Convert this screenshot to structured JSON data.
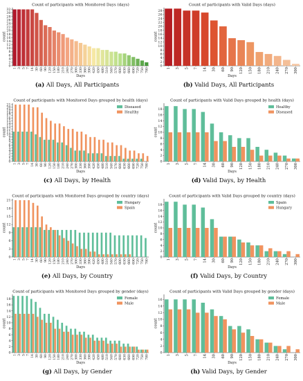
{
  "colors": {
    "all_days_gradient": [
      "#b2182b",
      "#d6604d",
      "#f4a582",
      "#f6e8a4",
      "#b8e08a",
      "#4a9b3e"
    ],
    "valid_days_gradient": [
      "#b51d23",
      "#dd4f2d",
      "#ee9b66",
      "#f6c9a6"
    ],
    "green": "#5fbe9a",
    "orange": "#f0935f"
  },
  "chart_data": [
    {
      "id": "a",
      "type": "bar",
      "title": "Count of participants with Monitored Days (days)",
      "xlabel": "Days",
      "ylabel": "count",
      "ylim": [
        0,
        33
      ],
      "yticks": [
        0,
        2,
        4,
        6,
        8,
        10,
        12,
        14,
        16,
        18,
        20,
        22,
        24,
        26,
        28,
        30,
        32
      ],
      "categories": [
        "1",
        "3",
        "5",
        "7",
        "14",
        "30",
        "60",
        "90",
        "120",
        "150",
        "180",
        "210",
        "240",
        "270",
        "300",
        "330",
        "360",
        "390",
        "420",
        "450",
        "480",
        "510",
        "540",
        "570",
        "600",
        "630",
        "660",
        "690",
        "720",
        "750",
        "780"
      ],
      "values": [
        32,
        32,
        32,
        32,
        32,
        30,
        26,
        23,
        22,
        20,
        19,
        18,
        16,
        15,
        14,
        13,
        12,
        11,
        10,
        10,
        9,
        9,
        8,
        8,
        7,
        7,
        6,
        5,
        4,
        3,
        2
      ],
      "color_scheme": "all_days_gradient",
      "caption_label": "(a)",
      "caption_text": "All Days, All Participants"
    },
    {
      "id": "b",
      "type": "bar",
      "title": "Count of participants with Valid Days (days)",
      "xlabel": "Days",
      "ylabel": "count",
      "ylim": [
        0,
        29.5
      ],
      "yticks": [
        0,
        2,
        4,
        6,
        8,
        10,
        12,
        14,
        16,
        18,
        20,
        22,
        24,
        26,
        28
      ],
      "categories": [
        "1",
        "3",
        "5",
        "7",
        "14",
        "30",
        "60",
        "90",
        "120",
        "150",
        "180",
        "210",
        "240",
        "270",
        "300"
      ],
      "values": [
        29,
        29,
        28,
        28,
        27,
        23,
        20,
        14,
        13,
        12,
        7,
        6,
        5,
        3,
        1
      ],
      "color_scheme": "valid_days_gradient",
      "caption_label": "(b)",
      "caption_text": "Valid Days, All Participants"
    },
    {
      "id": "c",
      "type": "bar",
      "title": "Count of participants with Monitored Days grouped by health (days)",
      "xlabel": "Days",
      "ylabel": "count",
      "ylim": [
        0,
        21.5
      ],
      "yticks": [
        0,
        1,
        2,
        3,
        4,
        5,
        6,
        7,
        8,
        9,
        10,
        11,
        12,
        13,
        14,
        15,
        16,
        17,
        18,
        19,
        20,
        21
      ],
      "legend": "top-right",
      "categories": [
        "1",
        "3",
        "5",
        "7",
        "14",
        "30",
        "60",
        "90",
        "120",
        "150",
        "180",
        "210",
        "240",
        "270",
        "300",
        "330",
        "360",
        "390",
        "420",
        "450",
        "480",
        "510",
        "540",
        "570",
        "600",
        "630",
        "660",
        "690",
        "720",
        "750",
        "780"
      ],
      "series": [
        {
          "name": "Diseased",
          "color": "green",
          "values": [
            11,
            11,
            11,
            11,
            11,
            10,
            9,
            8,
            8,
            8,
            7,
            7,
            6,
            5,
            4,
            4,
            4,
            3,
            3,
            3,
            3,
            2,
            2,
            2,
            2,
            1,
            1,
            1,
            1,
            1,
            0
          ]
        },
        {
          "name": "Healthy",
          "color": "orange",
          "values": [
            21,
            21,
            21,
            21,
            20,
            20,
            18,
            16,
            15,
            14,
            14,
            13,
            12,
            12,
            11,
            11,
            10,
            9,
            9,
            8,
            8,
            7,
            7,
            6,
            6,
            5,
            4,
            4,
            3,
            3,
            2
          ]
        }
      ],
      "caption_label": "(c)",
      "caption_text": "All Days, by Health"
    },
    {
      "id": "d",
      "type": "bar",
      "title": "Count of participants with Valid Days grouped by health (days)",
      "xlabel": "Days",
      "ylabel": "count",
      "ylim": [
        0,
        20
      ],
      "yticks": [
        0,
        2,
        4,
        6,
        8,
        10,
        12,
        14,
        16,
        18
      ],
      "legend": "top-right",
      "categories": [
        "1",
        "3",
        "5",
        "7",
        "14",
        "30",
        "60",
        "90",
        "120",
        "150",
        "180",
        "210",
        "240",
        "270",
        "300"
      ],
      "series": [
        {
          "name": "Healthy",
          "color": "green",
          "values": [
            19,
            19,
            18,
            18,
            17,
            13,
            10,
            9,
            8,
            8,
            5,
            4,
            3,
            2,
            1
          ]
        },
        {
          "name": "Diseased",
          "color": "orange",
          "values": [
            10,
            10,
            10,
            10,
            10,
            7,
            7,
            5,
            5,
            4,
            2,
            2,
            2,
            1,
            1
          ]
        }
      ],
      "caption_label": "(d)",
      "caption_text": "Valid Days, by Health"
    },
    {
      "id": "e",
      "type": "bar",
      "title": "Count of participants with Monitored Days grouped by country (days)",
      "xlabel": "Days",
      "ylabel": "count",
      "ylim": [
        0,
        21.5
      ],
      "yticks": [
        0,
        3,
        6,
        9,
        12,
        15,
        18,
        21
      ],
      "legend": "top-right",
      "categories": [
        "1",
        "3",
        "5",
        "7",
        "14",
        "30",
        "60",
        "90",
        "120",
        "150",
        "180",
        "210",
        "240",
        "270",
        "300",
        "330",
        "360",
        "390",
        "420",
        "450",
        "480",
        "510",
        "540",
        "570",
        "600",
        "630",
        "660",
        "690",
        "720",
        "750",
        "780"
      ],
      "series": [
        {
          "name": "Hungary",
          "color": "green",
          "values": [
            11,
            11,
            11,
            11,
            11,
            11,
            11,
            10,
            10,
            10,
            10,
            10,
            10,
            10,
            10,
            9,
            9,
            9,
            9,
            9,
            9,
            9,
            9,
            8,
            8,
            8,
            8,
            8,
            8,
            8,
            7
          ]
        },
        {
          "name": "Spain",
          "color": "orange",
          "values": [
            21,
            21,
            21,
            21,
            20,
            19,
            15,
            12,
            11,
            10,
            8,
            7,
            6,
            5,
            4,
            3,
            3,
            2,
            2,
            1,
            1,
            1,
            1,
            1,
            1,
            1,
            1,
            0,
            0,
            0,
            0
          ]
        }
      ],
      "caption_label": "(e)",
      "caption_text": "All Days, by Country"
    },
    {
      "id": "f",
      "type": "bar",
      "title": "Count of participants with Valid Days grouped by country (days)",
      "xlabel": "Days",
      "ylabel": "count",
      "ylim": [
        0,
        20
      ],
      "yticks": [
        0,
        2,
        4,
        6,
        8,
        10,
        12,
        14,
        16,
        18
      ],
      "legend": "top-right",
      "categories": [
        "1",
        "3",
        "5",
        "7",
        "14",
        "30",
        "60",
        "90",
        "120",
        "150",
        "180",
        "210",
        "240",
        "270",
        "300"
      ],
      "series": [
        {
          "name": "Spain",
          "color": "green",
          "values": [
            19,
            19,
            18,
            18,
            17,
            13,
            7,
            7,
            6,
            5,
            4,
            2,
            2,
            1,
            0
          ]
        },
        {
          "name": "Hungary",
          "color": "orange",
          "values": [
            10,
            10,
            10,
            10,
            10,
            10,
            7,
            7,
            5,
            4,
            4,
            3,
            2,
            2,
            1
          ]
        }
      ],
      "caption_label": "(f)",
      "caption_text": "Valid Days, by Country"
    },
    {
      "id": "g",
      "type": "bar",
      "title": "Count of participants with Monitored Days grouped by gender (days)",
      "xlabel": "Days",
      "ylabel": "count",
      "ylim": [
        0,
        19.5
      ],
      "yticks": [
        0,
        2,
        4,
        6,
        8,
        10,
        12,
        14,
        16,
        18
      ],
      "legend": "top-right",
      "categories": [
        "1",
        "3",
        "5",
        "7",
        "14",
        "30",
        "60",
        "90",
        "120",
        "150",
        "180",
        "210",
        "240",
        "270",
        "300",
        "330",
        "360",
        "390",
        "420",
        "450",
        "480",
        "510",
        "540",
        "570",
        "600",
        "630",
        "660",
        "690",
        "720",
        "750",
        "780"
      ],
      "series": [
        {
          "name": "Female",
          "color": "green",
          "values": [
            19,
            19,
            19,
            19,
            18,
            17,
            15,
            13,
            13,
            12,
            11,
            10,
            9,
            8,
            8,
            7,
            7,
            6,
            6,
            5,
            5,
            5,
            4,
            4,
            4,
            3,
            3,
            2,
            2,
            1,
            1
          ]
        },
        {
          "name": "Male",
          "color": "orange",
          "values": [
            13,
            13,
            13,
            13,
            13,
            12,
            11,
            10,
            10,
            8,
            8,
            7,
            7,
            6,
            6,
            6,
            5,
            5,
            4,
            4,
            4,
            3,
            3,
            3,
            2,
            2,
            2,
            2,
            1,
            1,
            1
          ]
        }
      ],
      "caption_label": "(g)",
      "caption_text": "All Days, by Gender"
    },
    {
      "id": "h",
      "type": "bar",
      "title": "Count of participants with Valid Days grouped by gender (days)",
      "xlabel": "Days",
      "ylabel": "count",
      "ylim": [
        0,
        17.5
      ],
      "yticks": [
        0,
        2,
        4,
        6,
        8,
        10,
        12,
        14,
        16
      ],
      "legend": "top-right",
      "categories": [
        "1",
        "3",
        "5",
        "7",
        "14",
        "30",
        "60",
        "90",
        "120",
        "150",
        "180",
        "210",
        "240",
        "270",
        "300"
      ],
      "series": [
        {
          "name": "Female",
          "color": "green",
          "values": [
            16,
            16,
            16,
            16,
            15,
            13,
            11,
            8,
            8,
            7,
            4,
            3,
            2,
            1,
            0
          ]
        },
        {
          "name": "Male",
          "color": "orange",
          "values": [
            13,
            13,
            13,
            12,
            12,
            11,
            10,
            7,
            6,
            5,
            4,
            3,
            2,
            2,
            1
          ]
        }
      ],
      "caption_label": "(h)",
      "caption_text": "Valid Days, by Gender"
    }
  ]
}
